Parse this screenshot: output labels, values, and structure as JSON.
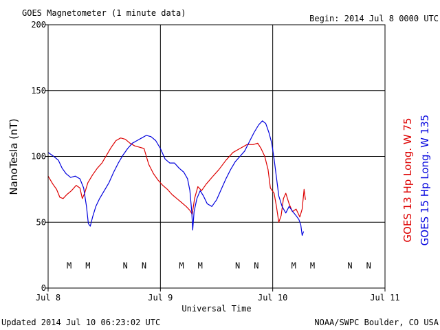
{
  "header": {
    "title": "GOES Magnetometer (1 minute data)",
    "begin": "Begin:  2014 Jul 8 0000 UTC"
  },
  "footer": {
    "updated": "Updated 2014 Jul 10 06:23:02 UTC",
    "credit": "NOAA/SWPC Boulder, CO USA"
  },
  "colors": {
    "goes13": "#dd0000",
    "goes15": "#0000dd"
  },
  "chart_data": {
    "type": "line",
    "xlabel": "Universal Time",
    "ylabel": "NanoTesla (nT)",
    "xlim": [
      0,
      72
    ],
    "ylim": [
      0,
      200
    ],
    "x_unit": "hours since 2014 Jul 8 0000 UTC",
    "xticks": [
      {
        "x": 0,
        "label": "Jul 8"
      },
      {
        "x": 24,
        "label": "Jul 9"
      },
      {
        "x": 48,
        "label": "Jul 10"
      },
      {
        "x": 72,
        "label": "Jul 11"
      }
    ],
    "yticks": [
      {
        "y": 0,
        "label": "0"
      },
      {
        "y": 50,
        "label": "50"
      },
      {
        "y": 100,
        "label": "100"
      },
      {
        "y": 150,
        "label": "150"
      },
      {
        "y": 200,
        "label": "200"
      }
    ],
    "grid": true,
    "series": [
      {
        "name": "GOES 13 Hp  Long. W 75",
        "color": "#dd0000",
        "points": [
          [
            0,
            85
          ],
          [
            1,
            79
          ],
          [
            1.8,
            75
          ],
          [
            2.5,
            69
          ],
          [
            3.2,
            68
          ],
          [
            4,
            71
          ],
          [
            5,
            74
          ],
          [
            6,
            78
          ],
          [
            6.8,
            76
          ],
          [
            7.3,
            68
          ],
          [
            7.8,
            72
          ],
          [
            8.5,
            80
          ],
          [
            9.5,
            86
          ],
          [
            10.5,
            91
          ],
          [
            11.5,
            95
          ],
          [
            12.5,
            101
          ],
          [
            13.5,
            107
          ],
          [
            14.5,
            112
          ],
          [
            15.5,
            114
          ],
          [
            16.5,
            113
          ],
          [
            17.5,
            110
          ],
          [
            18.5,
            108
          ],
          [
            19.5,
            107
          ],
          [
            20.5,
            106
          ],
          [
            21,
            100
          ],
          [
            21.5,
            94
          ],
          [
            22.5,
            87
          ],
          [
            23.5,
            82
          ],
          [
            24.5,
            78
          ],
          [
            25.5,
            75
          ],
          [
            26.5,
            71
          ],
          [
            27.5,
            68
          ],
          [
            28.5,
            65
          ],
          [
            29.5,
            62
          ],
          [
            30.3,
            59
          ],
          [
            30.8,
            56
          ],
          [
            31.3,
            68
          ],
          [
            32,
            77
          ],
          [
            32.8,
            74
          ],
          [
            33.8,
            79
          ],
          [
            35,
            84
          ],
          [
            36.5,
            90
          ],
          [
            38,
            97
          ],
          [
            39.5,
            103
          ],
          [
            41,
            106
          ],
          [
            42.5,
            109
          ],
          [
            43.8,
            109
          ],
          [
            44.8,
            110
          ],
          [
            45.5,
            106
          ],
          [
            46.3,
            100
          ],
          [
            47,
            90
          ],
          [
            47.5,
            76
          ],
          [
            48.3,
            72
          ],
          [
            48.8,
            62
          ],
          [
            49.3,
            50
          ],
          [
            49.8,
            55
          ],
          [
            50.3,
            68
          ],
          [
            50.8,
            72
          ],
          [
            51.5,
            64
          ],
          [
            52.2,
            58
          ],
          [
            53,
            60
          ],
          [
            53.8,
            54
          ],
          [
            54.3,
            60
          ],
          [
            54.7,
            75
          ],
          [
            55,
            67
          ]
        ]
      },
      {
        "name": "GOES 15 Hp  Long. W 135",
        "color": "#0000dd",
        "points": [
          [
            0,
            103
          ],
          [
            1.2,
            100
          ],
          [
            2.2,
            97
          ],
          [
            3,
            91
          ],
          [
            3.8,
            87
          ],
          [
            4.8,
            84
          ],
          [
            5.8,
            85
          ],
          [
            6.8,
            83
          ],
          [
            7.6,
            76
          ],
          [
            8.2,
            62
          ],
          [
            8.6,
            49
          ],
          [
            9,
            47
          ],
          [
            9.5,
            54
          ],
          [
            10.2,
            62
          ],
          [
            11,
            68
          ],
          [
            12,
            74
          ],
          [
            13,
            80
          ],
          [
            14,
            88
          ],
          [
            15,
            95
          ],
          [
            16,
            101
          ],
          [
            17,
            106
          ],
          [
            18,
            110
          ],
          [
            19,
            112
          ],
          [
            20,
            114
          ],
          [
            21,
            116
          ],
          [
            22,
            115
          ],
          [
            23,
            112
          ],
          [
            24,
            106
          ],
          [
            25,
            98
          ],
          [
            26,
            95
          ],
          [
            27,
            95
          ],
          [
            28,
            91
          ],
          [
            29,
            88
          ],
          [
            29.8,
            83
          ],
          [
            30.3,
            74
          ],
          [
            30.7,
            58
          ],
          [
            30.9,
            44
          ],
          [
            31.2,
            58
          ],
          [
            31.8,
            68
          ],
          [
            32.5,
            74
          ],
          [
            33.2,
            70
          ],
          [
            34,
            64
          ],
          [
            35,
            62
          ],
          [
            36,
            67
          ],
          [
            37,
            75
          ],
          [
            38,
            83
          ],
          [
            39,
            90
          ],
          [
            40,
            96
          ],
          [
            41,
            100
          ],
          [
            42,
            104
          ],
          [
            43,
            111
          ],
          [
            44,
            118
          ],
          [
            45,
            124
          ],
          [
            45.8,
            127
          ],
          [
            46.5,
            125
          ],
          [
            47.2,
            118
          ],
          [
            47.8,
            110
          ],
          [
            48.3,
            98
          ],
          [
            48.8,
            84
          ],
          [
            49.3,
            70
          ],
          [
            50,
            62
          ],
          [
            50.8,
            57
          ],
          [
            51.5,
            62
          ],
          [
            52.3,
            58
          ],
          [
            53,
            55
          ],
          [
            53.6,
            52
          ],
          [
            54,
            48
          ],
          [
            54.3,
            40
          ],
          [
            54.6,
            43
          ]
        ]
      }
    ],
    "markers": [
      {
        "x": 4.5,
        "label": "M",
        "color": "#dd0000"
      },
      {
        "x": 8.5,
        "label": "M",
        "color": "#0000dd"
      },
      {
        "x": 16.5,
        "label": "N",
        "color": "#dd0000"
      },
      {
        "x": 20.5,
        "label": "N",
        "color": "#0000dd"
      },
      {
        "x": 28.5,
        "label": "M",
        "color": "#dd0000"
      },
      {
        "x": 32.5,
        "label": "M",
        "color": "#0000dd"
      },
      {
        "x": 40.5,
        "label": "N",
        "color": "#dd0000"
      },
      {
        "x": 44.5,
        "label": "N",
        "color": "#0000dd"
      },
      {
        "x": 52.5,
        "label": "M",
        "color": "#dd0000"
      },
      {
        "x": 56.5,
        "label": "M",
        "color": "#0000dd"
      },
      {
        "x": 64.5,
        "label": "N",
        "color": "#dd0000"
      },
      {
        "x": 68.5,
        "label": "N",
        "color": "#0000dd"
      }
    ],
    "marker_y": 17
  }
}
